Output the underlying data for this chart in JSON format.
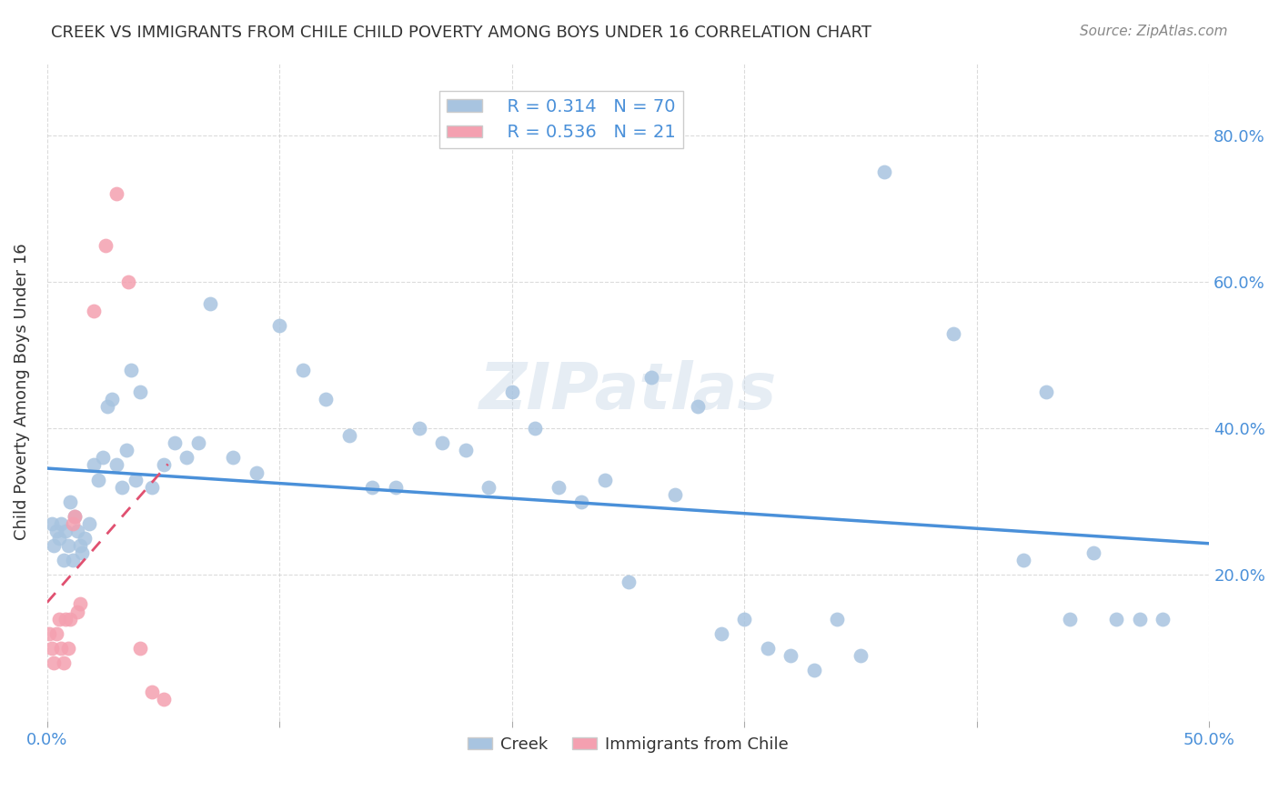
{
  "title": "CREEK VS IMMIGRANTS FROM CHILE CHILD POVERTY AMONG BOYS UNDER 16 CORRELATION CHART",
  "source": "Source: ZipAtlas.com",
  "ylabel": "Child Poverty Among Boys Under 16",
  "xlim": [
    0.0,
    0.5
  ],
  "ylim": [
    0.0,
    0.9
  ],
  "blue_color": "#a8c4e0",
  "pink_color": "#f4a0b0",
  "blue_line_color": "#4a90d9",
  "pink_line_color": "#e05070",
  "watermark": "ZIPatlas",
  "creek_x": [
    0.002,
    0.003,
    0.004,
    0.005,
    0.006,
    0.007,
    0.008,
    0.009,
    0.01,
    0.011,
    0.012,
    0.013,
    0.014,
    0.015,
    0.016,
    0.018,
    0.02,
    0.022,
    0.024,
    0.026,
    0.028,
    0.03,
    0.032,
    0.034,
    0.036,
    0.038,
    0.04,
    0.045,
    0.05,
    0.055,
    0.06,
    0.065,
    0.07,
    0.08,
    0.09,
    0.1,
    0.11,
    0.12,
    0.13,
    0.14,
    0.15,
    0.16,
    0.17,
    0.18,
    0.19,
    0.2,
    0.21,
    0.22,
    0.23,
    0.24,
    0.25,
    0.26,
    0.27,
    0.28,
    0.29,
    0.3,
    0.31,
    0.32,
    0.33,
    0.34,
    0.35,
    0.36,
    0.39,
    0.42,
    0.43,
    0.44,
    0.45,
    0.46,
    0.47,
    0.48
  ],
  "creek_y": [
    0.27,
    0.24,
    0.26,
    0.25,
    0.27,
    0.22,
    0.26,
    0.24,
    0.3,
    0.22,
    0.28,
    0.26,
    0.24,
    0.23,
    0.25,
    0.27,
    0.35,
    0.33,
    0.36,
    0.43,
    0.44,
    0.35,
    0.32,
    0.37,
    0.48,
    0.33,
    0.45,
    0.32,
    0.35,
    0.38,
    0.36,
    0.38,
    0.57,
    0.36,
    0.34,
    0.54,
    0.48,
    0.44,
    0.39,
    0.32,
    0.32,
    0.4,
    0.38,
    0.37,
    0.32,
    0.45,
    0.4,
    0.32,
    0.3,
    0.33,
    0.19,
    0.47,
    0.31,
    0.43,
    0.12,
    0.14,
    0.1,
    0.09,
    0.07,
    0.14,
    0.09,
    0.75,
    0.53,
    0.22,
    0.45,
    0.14,
    0.23,
    0.14,
    0.14,
    0.14
  ],
  "chile_x": [
    0.001,
    0.002,
    0.003,
    0.004,
    0.005,
    0.006,
    0.007,
    0.008,
    0.009,
    0.01,
    0.011,
    0.012,
    0.013,
    0.014,
    0.02,
    0.025,
    0.03,
    0.035,
    0.04,
    0.045,
    0.05
  ],
  "chile_y": [
    0.12,
    0.1,
    0.08,
    0.12,
    0.14,
    0.1,
    0.08,
    0.14,
    0.1,
    0.14,
    0.27,
    0.28,
    0.15,
    0.16,
    0.56,
    0.65,
    0.72,
    0.6,
    0.1,
    0.04,
    0.03
  ]
}
